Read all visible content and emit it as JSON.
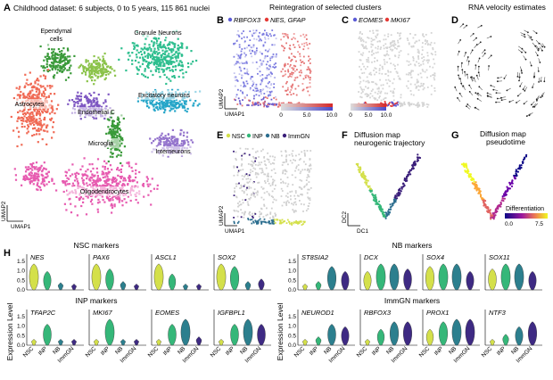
{
  "panelA": {
    "letter": "A",
    "title": "Childhood dataset: 6 subjects, 0 to 5 years, 115 861 nuclei",
    "clusters": [
      {
        "label": "Ependymal cells",
        "line1": "Ependymal",
        "line2": "cells",
        "color": "#8bc34a"
      },
      {
        "label": "Granule Neurons",
        "color": "#2fbf8f"
      },
      {
        "label": "Astrocytes",
        "color": "#f06a55"
      },
      {
        "label": "Endothelial C",
        "color": "#7e57c2"
      },
      {
        "label": "Excitatory neurons",
        "color": "#26a6c9"
      },
      {
        "label": "Microglia",
        "color": "#3a9a3a"
      },
      {
        "label": "Interneurons",
        "color": "#9575cd"
      },
      {
        "label": "Oligodendrocytes",
        "color": "#e75bb0"
      }
    ],
    "axis_y": "UMAP2",
    "axis_x": "UMAP1"
  },
  "panelB": {
    "letter": "B",
    "gene1": "RBFOX3",
    "gene2": "NES, GFAP",
    "color1": "#5b5bd6",
    "color2": "#e53935",
    "axis_y": "UMAP2",
    "axis_x": "UMAP1",
    "ticks": [
      "0",
      "5.0",
      "10.0"
    ]
  },
  "panelBC_title": "Reintegration of selected clusters",
  "panelC": {
    "letter": "C",
    "gene1": "EOMES",
    "gene2": "MKI67",
    "ticks": [
      "0",
      "5.0",
      "10.0"
    ]
  },
  "panelD": {
    "letter": "D",
    "title": "RNA velocity estimates"
  },
  "panelE": {
    "letter": "E",
    "legend": [
      "NSC",
      "INP",
      "NB",
      "ImmGN"
    ],
    "legend_colors": [
      "#d4e04a",
      "#35b779",
      "#2c6e8f",
      "#3b1f7a"
    ],
    "axis_y": "UMAP2",
    "axis_x": "UMAP1"
  },
  "panelF": {
    "letter": "F",
    "title_line1": "Diffusion map",
    "title_line2": "neurogenic trajectory",
    "axis_y": "DC2",
    "axis_x": "DC1"
  },
  "panelG": {
    "letter": "G",
    "title_line1": "Diffusion map",
    "title_line2": "pseudotime",
    "legend_title": "Differentiation",
    "ticks": [
      "0.0",
      "7.5"
    ]
  },
  "panelH": {
    "letter": "H",
    "ylabel": "Expression Level",
    "groups": [
      "NSC",
      "INP",
      "NB",
      "ImmGN"
    ],
    "group_colors": [
      "#d4e04a",
      "#35b779",
      "#2c7f8e",
      "#3e2a83"
    ],
    "tick_values": [
      "1.5",
      "1.0",
      "0.5",
      "0.0"
    ],
    "sections": [
      {
        "title": "NSC markers",
        "genes": [
          "NES",
          "PAX6",
          "ASCL1",
          "SOX2"
        ]
      },
      {
        "title": "INP markers",
        "genes": [
          "TFAP2C",
          "MKI67",
          "EOMES",
          "IGFBPL1"
        ]
      },
      {
        "title": "NB markers",
        "genes": [
          "ST8SIA2",
          "DCX",
          "SOX4",
          "SOX11"
        ]
      },
      {
        "title": "ImmGN markers",
        "genes": [
          "NEUROD1",
          "RBFOX3",
          "PROX1",
          "NTF3"
        ]
      }
    ]
  }
}
